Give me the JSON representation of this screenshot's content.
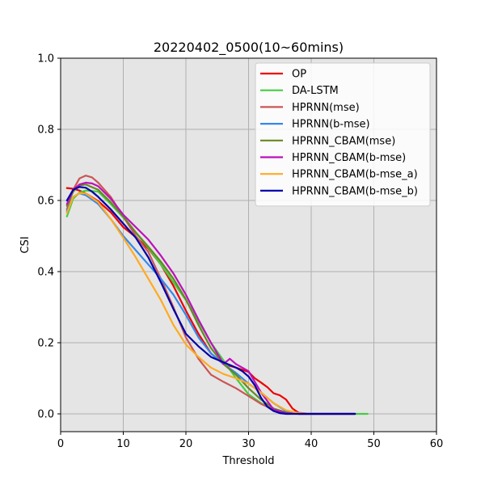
{
  "chart_data": {
    "type": "line",
    "title": "20220402_0500(10~60mins)",
    "xlabel": "Threshold",
    "ylabel": "CSI",
    "xlim": [
      0,
      60
    ],
    "ylim": [
      -0.05,
      1.0
    ],
    "xticks": [
      0,
      10,
      20,
      30,
      40,
      50,
      60
    ],
    "yticks": [
      0.0,
      0.2,
      0.4,
      0.6,
      0.8,
      1.0
    ],
    "grid": true,
    "legend_position": "upper-right",
    "series": [
      {
        "name": "OP",
        "color": "#ee0000",
        "x": [
          1,
          2,
          3,
          4,
          6,
          8,
          10,
          12,
          14,
          16,
          18,
          20,
          22,
          24,
          26,
          28,
          30,
          31,
          32,
          33,
          34,
          35,
          36,
          37,
          38,
          40,
          42,
          45,
          47
        ],
        "y": [
          0.635,
          0.633,
          0.628,
          0.62,
          0.598,
          0.567,
          0.525,
          0.497,
          0.465,
          0.42,
          0.36,
          0.29,
          0.225,
          0.17,
          0.14,
          0.13,
          0.118,
          0.1,
          0.088,
          0.075,
          0.058,
          0.052,
          0.04,
          0.015,
          0.003,
          0.0,
          0.0,
          0.0,
          0.0
        ]
      },
      {
        "name": "DA-LSTM",
        "color": "#44cc44",
        "x": [
          1,
          2,
          3,
          4,
          6,
          8,
          10,
          12,
          14,
          16,
          18,
          20,
          22,
          24,
          26,
          28,
          30,
          32,
          34,
          36,
          38,
          40,
          45,
          49
        ],
        "y": [
          0.555,
          0.605,
          0.622,
          0.628,
          0.625,
          0.59,
          0.552,
          0.51,
          0.467,
          0.42,
          0.37,
          0.32,
          0.26,
          0.2,
          0.15,
          0.1,
          0.055,
          0.03,
          0.012,
          0.003,
          0.0,
          0.0,
          0.0,
          0.0
        ]
      },
      {
        "name": "HPRNN(mse)",
        "color": "#cc5555",
        "x": [
          1,
          2,
          3,
          4,
          5,
          6,
          8,
          10,
          12,
          14,
          16,
          18,
          20,
          22,
          24,
          26,
          28,
          30,
          32,
          34,
          36,
          38,
          40,
          45,
          47
        ],
        "y": [
          0.575,
          0.63,
          0.662,
          0.67,
          0.665,
          0.65,
          0.61,
          0.555,
          0.5,
          0.455,
          0.38,
          0.3,
          0.215,
          0.155,
          0.11,
          0.09,
          0.072,
          0.05,
          0.028,
          0.012,
          0.004,
          0.0,
          0.0,
          0.0,
          0.0
        ]
      },
      {
        "name": "HPRNN(b-mse)",
        "color": "#3388ee",
        "x": [
          1,
          2,
          3,
          4,
          6,
          8,
          10,
          12,
          14,
          16,
          18,
          20,
          22,
          24,
          26,
          28,
          30,
          32,
          34,
          36,
          38,
          40,
          45,
          47
        ],
        "y": [
          0.57,
          0.61,
          0.62,
          0.615,
          0.59,
          0.548,
          0.5,
          0.46,
          0.42,
          0.38,
          0.335,
          0.278,
          0.215,
          0.17,
          0.14,
          0.115,
          0.085,
          0.06,
          0.03,
          0.008,
          0.001,
          0.0,
          0.0,
          0.0
        ]
      },
      {
        "name": "HPRNN_CBAM(mse)",
        "color": "#668822",
        "x": [
          1,
          2,
          3,
          4,
          6,
          8,
          10,
          12,
          14,
          16,
          18,
          20,
          22,
          24,
          26,
          28,
          30,
          32,
          34,
          36,
          38,
          40,
          45,
          47
        ],
        "y": [
          0.585,
          0.625,
          0.642,
          0.645,
          0.63,
          0.595,
          0.555,
          0.51,
          0.47,
          0.428,
          0.38,
          0.322,
          0.25,
          0.185,
          0.14,
          0.11,
          0.072,
          0.04,
          0.015,
          0.004,
          0.0,
          0.0,
          0.0,
          0.0
        ]
      },
      {
        "name": "HPRNN_CBAM(b-mse)",
        "color": "#bb11bb",
        "x": [
          1,
          2,
          3,
          4,
          5,
          6,
          8,
          10,
          12,
          14,
          16,
          18,
          20,
          22,
          24,
          26,
          27,
          28,
          30,
          32,
          34,
          36,
          38,
          40,
          45,
          47
        ],
        "y": [
          0.59,
          0.63,
          0.645,
          0.65,
          0.648,
          0.64,
          0.605,
          0.56,
          0.525,
          0.49,
          0.445,
          0.395,
          0.335,
          0.265,
          0.2,
          0.14,
          0.155,
          0.14,
          0.12,
          0.06,
          0.012,
          0.002,
          0.0,
          0.0,
          0.0,
          0.0
        ]
      },
      {
        "name": "HPRNN_CBAM(b-mse_a)",
        "color": "#ffaa22",
        "x": [
          1,
          2,
          3,
          4,
          6,
          8,
          10,
          12,
          14,
          16,
          18,
          20,
          22,
          24,
          26,
          28,
          30,
          32,
          34,
          36,
          38,
          40,
          45,
          47
        ],
        "y": [
          0.565,
          0.61,
          0.62,
          0.62,
          0.595,
          0.548,
          0.495,
          0.44,
          0.38,
          0.32,
          0.25,
          0.195,
          0.16,
          0.13,
          0.112,
          0.1,
          0.085,
          0.06,
          0.03,
          0.01,
          0.002,
          0.0,
          0.0,
          0.0
        ]
      },
      {
        "name": "HPRNN_CBAM(b-mse_b)",
        "color": "#0000aa",
        "x": [
          1,
          2,
          3,
          4,
          5,
          6,
          8,
          10,
          12,
          14,
          16,
          18,
          20,
          22,
          24,
          26,
          28,
          29,
          30,
          31,
          32,
          33,
          34,
          35,
          36,
          38,
          40,
          45,
          47
        ],
        "y": [
          0.6,
          0.63,
          0.638,
          0.636,
          0.625,
          0.61,
          0.575,
          0.535,
          0.495,
          0.44,
          0.37,
          0.295,
          0.225,
          0.19,
          0.16,
          0.145,
          0.13,
          0.12,
          0.105,
          0.08,
          0.045,
          0.02,
          0.008,
          0.002,
          0.0,
          0.0,
          0.0,
          0.0,
          0.0
        ]
      }
    ]
  }
}
